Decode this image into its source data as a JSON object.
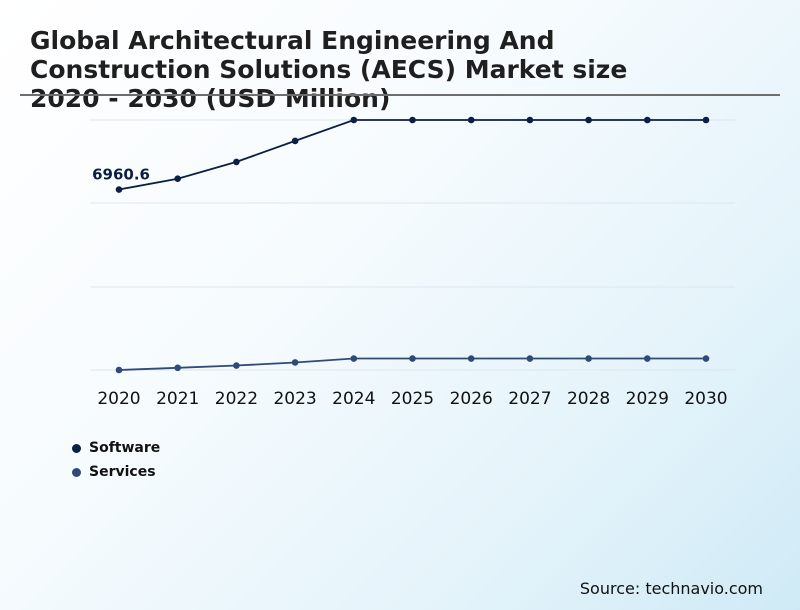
{
  "chart_data": {
    "type": "line",
    "title": "Global Architectural Engineering And Construction Solutions (AECS) Market size 2020 - 2030 (USD Million)",
    "categories": [
      "2020",
      "2021",
      "2022",
      "2023",
      "2024",
      "2025",
      "2026",
      "2027",
      "2028",
      "2029",
      "2030"
    ],
    "series": [
      {
        "name": "Software",
        "color": "#0b1f45",
        "values": [
          6960.6,
          7350,
          7950,
          8700,
          9450,
          9450,
          9450,
          9450,
          9450,
          9450,
          9450
        ]
      },
      {
        "name": "Services",
        "color": "#2f4a7a",
        "values": [
          500,
          580,
          660,
          770,
          910,
          910,
          910,
          910,
          910,
          910,
          910
        ]
      }
    ],
    "annotations": [
      {
        "series": "Software",
        "index": 0,
        "label": "6960.6"
      }
    ],
    "ylim": [
      500,
      9450
    ],
    "xlabel": "",
    "ylabel": "",
    "grid": true,
    "legend": "bottom-left"
  },
  "source": "Source: technavio.com"
}
